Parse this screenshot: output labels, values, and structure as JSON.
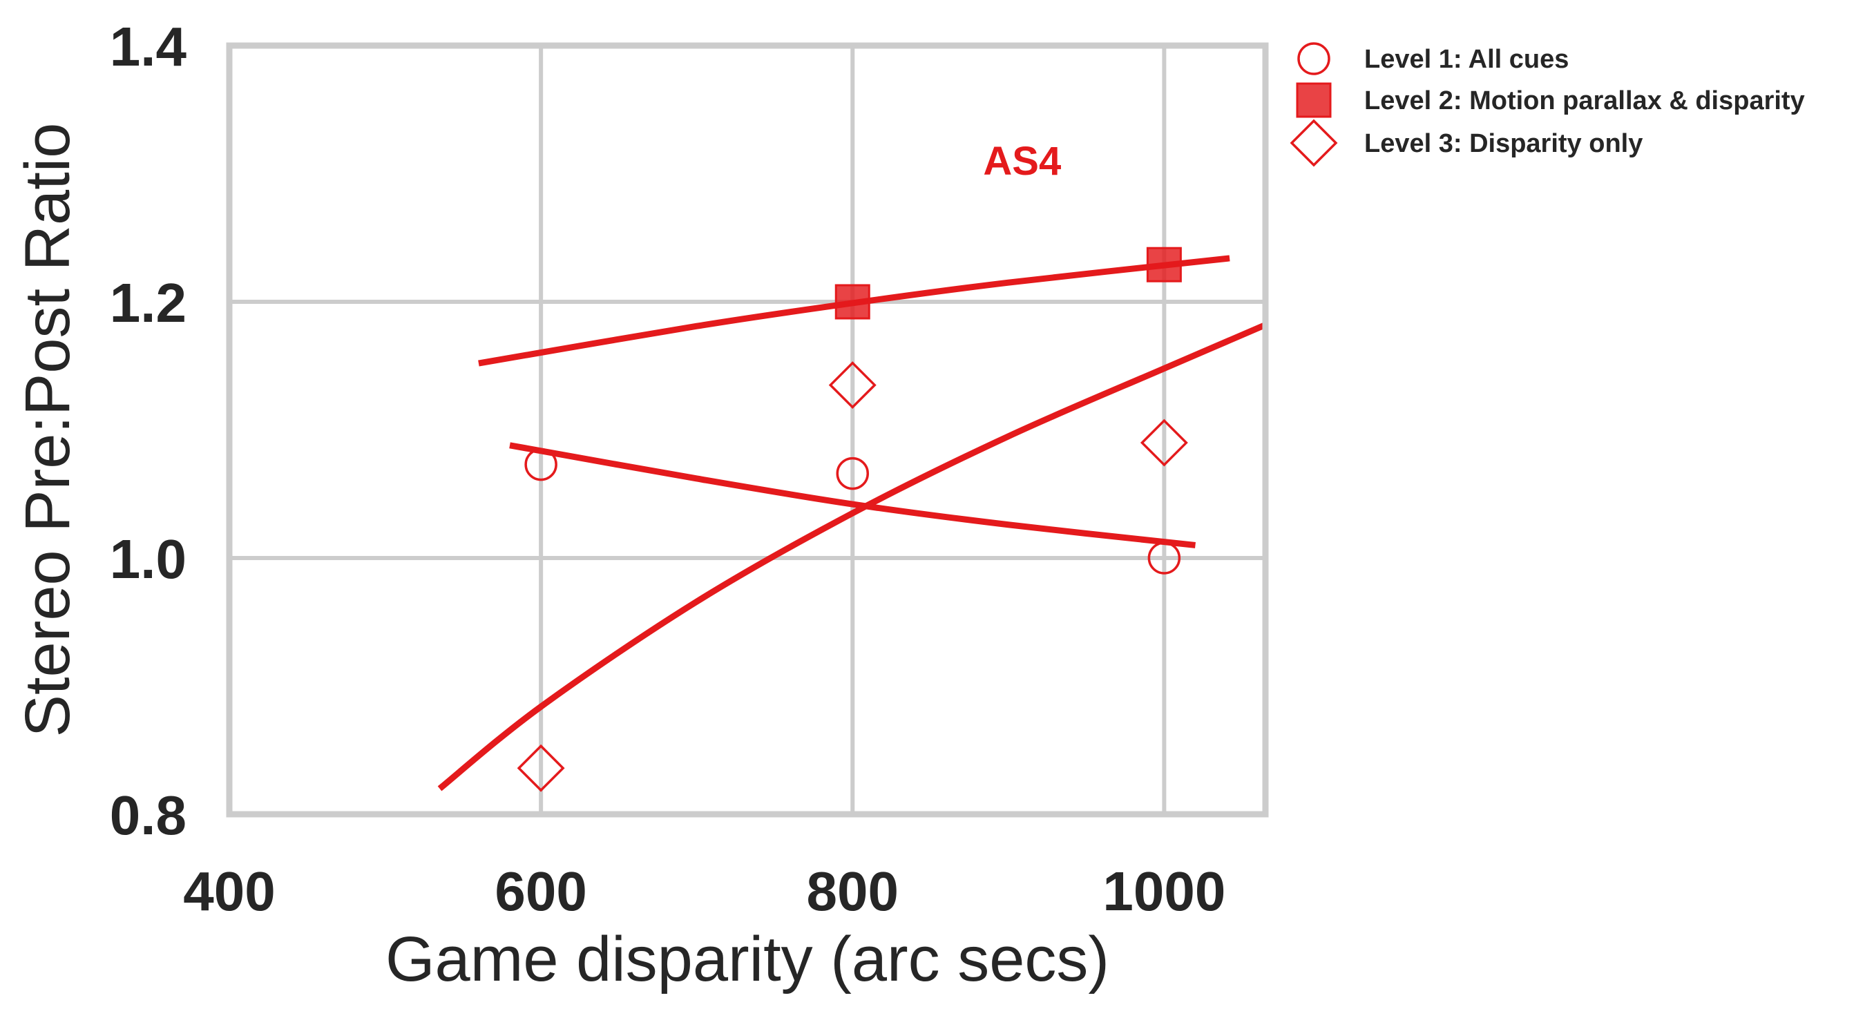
{
  "chart_data": {
    "type": "scatter",
    "title": "",
    "xlabel": "Game disparity (arc secs)",
    "ylabel": "Stereo Pre:Post Ratio",
    "xlim": [
      400,
      1065
    ],
    "ylim": [
      0.8,
      1.4
    ],
    "xticks": [
      400,
      600,
      800,
      1000
    ],
    "xtick_labels": [
      "400",
      "600",
      "800",
      "1000"
    ],
    "yticks": [
      0.8,
      1.0,
      1.2,
      1.4
    ],
    "ytick_labels": [
      "0.8",
      "1.0",
      "1.2",
      "1.4"
    ],
    "grid": true,
    "legend_position": "outside-top-right",
    "color": "#e41a1c",
    "annotation": {
      "text": "AS4",
      "x": 900,
      "y": 1.31
    },
    "series": [
      {
        "name": "Level 1: All cues",
        "marker": "circle-open",
        "points": [
          {
            "x": 600,
            "y": 1.073
          },
          {
            "x": 800,
            "y": 1.066
          },
          {
            "x": 1000,
            "y": 1.0
          }
        ],
        "fit": [
          {
            "x": 580,
            "y": 1.088
          },
          {
            "x": 700,
            "y": 1.062
          },
          {
            "x": 800,
            "y": 1.042
          },
          {
            "x": 900,
            "y": 1.026
          },
          {
            "x": 1020,
            "y": 1.01
          }
        ]
      },
      {
        "name": "Level 2: Motion parallax & disparity",
        "marker": "square-filled",
        "points": [
          {
            "x": 800,
            "y": 1.2
          },
          {
            "x": 1000,
            "y": 1.229
          }
        ],
        "fit": [
          {
            "x": 560,
            "y": 1.152
          },
          {
            "x": 700,
            "y": 1.181
          },
          {
            "x": 800,
            "y": 1.199
          },
          {
            "x": 900,
            "y": 1.215
          },
          {
            "x": 1042,
            "y": 1.234
          }
        ]
      },
      {
        "name": "Level 3: Disparity only",
        "marker": "diamond-open",
        "points": [
          {
            "x": 600,
            "y": 0.836
          },
          {
            "x": 800,
            "y": 1.135
          },
          {
            "x": 1000,
            "y": 1.09
          }
        ],
        "fit": [
          {
            "x": 535,
            "y": 0.82
          },
          {
            "x": 600,
            "y": 0.884
          },
          {
            "x": 700,
            "y": 0.966
          },
          {
            "x": 800,
            "y": 1.035
          },
          {
            "x": 900,
            "y": 1.095
          },
          {
            "x": 1000,
            "y": 1.148
          },
          {
            "x": 1065,
            "y": 1.182
          }
        ]
      }
    ]
  }
}
